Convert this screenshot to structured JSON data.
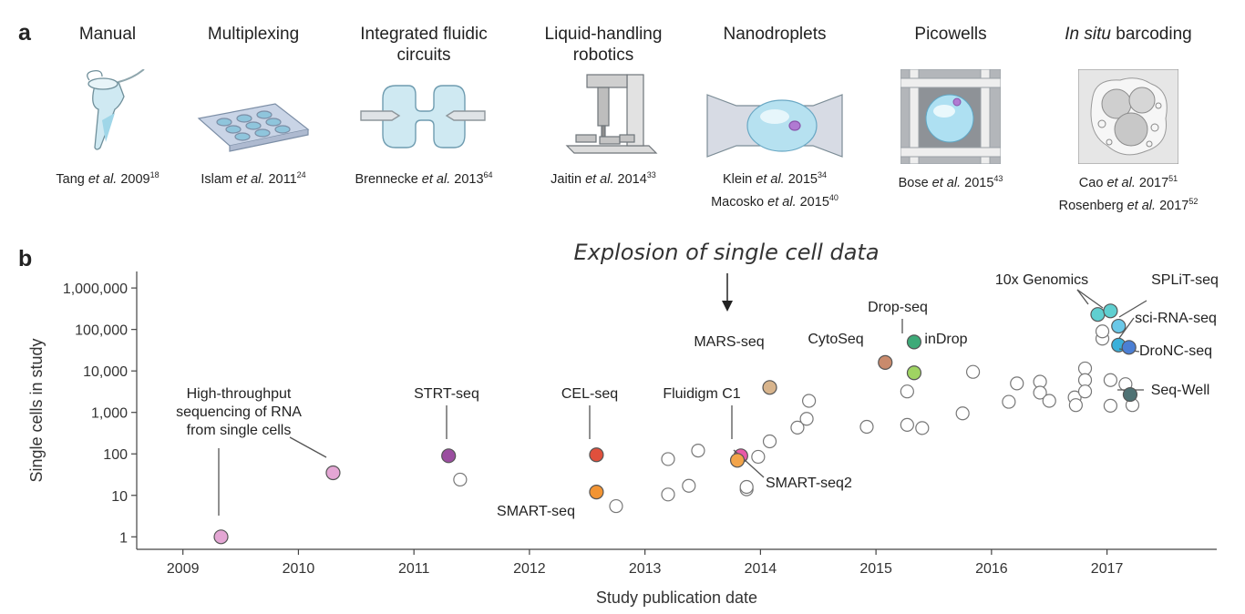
{
  "panel_a": {
    "letter": "a",
    "technologies": [
      {
        "name": "Manual",
        "icon": "microcentrifuge-tube-icon",
        "refs": [
          {
            "pre": "Tang ",
            "etal": "et al.",
            "year": " 2009",
            "sup": "18"
          }
        ]
      },
      {
        "name": "Multiplexing",
        "icon": "multiwell-plate-icon",
        "refs": [
          {
            "pre": "Islam ",
            "etal": "et al.",
            "year": " 2011",
            "sup": "24"
          }
        ]
      },
      {
        "name": "Integrated fluidic circuits",
        "icon": "fluidic-circuit-icon",
        "refs": [
          {
            "pre": "Brennecke ",
            "etal": "et al.",
            "year": " 2013",
            "sup": "64"
          }
        ]
      },
      {
        "name": "Liquid-handling robotics",
        "icon": "liquid-handling-robot-icon",
        "refs": [
          {
            "pre": "Jaitin ",
            "etal": "et al.",
            "year": " 2014",
            "sup": "33"
          }
        ]
      },
      {
        "name": "Nanodroplets",
        "icon": "nanodroplet-channel-icon",
        "refs": [
          {
            "pre": "Klein ",
            "etal": "et al.",
            "year": " 2015",
            "sup": "34"
          },
          {
            "pre": "Macosko ",
            "etal": "et al.",
            "year": " 2015",
            "sup": "40"
          }
        ]
      },
      {
        "name": "Picowells",
        "icon": "picowell-grid-icon",
        "refs": [
          {
            "pre": "Bose ",
            "etal": "et al.",
            "year": " 2015",
            "sup": "43"
          }
        ]
      },
      {
        "name_italic": "In situ",
        "name": " barcoding",
        "icon": "in-situ-barcoding-cell-icon",
        "refs": [
          {
            "pre": "Cao ",
            "etal": "et al.",
            "year": " 2017",
            "sup": "51"
          },
          {
            "pre": "Rosenberg ",
            "etal": "et al.",
            "year": " 2017",
            "sup": "52"
          }
        ]
      }
    ]
  },
  "chart_data": {
    "type": "scatter",
    "panel_letter": "b",
    "annotation": "Explosion of single cell data",
    "xlabel": "Study publication date",
    "ylabel": "Single cells in study",
    "xlim": [
      2008.6,
      2017.95
    ],
    "ylim": [
      0.5,
      2500000
    ],
    "yscale": "log",
    "xticks": [
      2009,
      2010,
      2011,
      2012,
      2013,
      2014,
      2015,
      2016,
      2017
    ],
    "xtick_labels": [
      "2009",
      "2010",
      "2011",
      "2012",
      "2013",
      "2014",
      "2015",
      "2016",
      "2017"
    ],
    "yticks": [
      1,
      10,
      100,
      1000,
      10000,
      100000,
      1000000
    ],
    "ytick_labels": [
      "1",
      "10",
      "100",
      "1,000",
      "10,000",
      "100,000",
      "1,000,000"
    ],
    "labeled_points": [
      {
        "name": "High-throughput sequencing of RNA from single cells",
        "label_lines": [
          "High-throughput",
          "sequencing of RNA",
          "from single cells"
        ],
        "x": 2009.33,
        "y": 1,
        "color": "#e4a6d4"
      },
      {
        "name": "High-throughput sequencing of RNA from single cells (2010)",
        "label_lines": [],
        "x": 2010.3,
        "y": 35,
        "color": "#e4a6d4"
      },
      {
        "name": "STRT-seq",
        "label_lines": [
          "STRT-seq"
        ],
        "x": 2011.3,
        "y": 90,
        "color": "#9b4ea0"
      },
      {
        "name": "CEL-seq",
        "label_lines": [
          "CEL-seq"
        ],
        "x": 2012.58,
        "y": 95,
        "color": "#e0503c"
      },
      {
        "name": "SMART-seq",
        "label_lines": [
          "SMART-seq"
        ],
        "x": 2012.58,
        "y": 12,
        "color": "#f29433"
      },
      {
        "name": "Fluidigm C1",
        "label_lines": [
          "Fluidigm C1"
        ],
        "x": 2013.83,
        "y": 90,
        "color": "#e85aa8"
      },
      {
        "name": "SMART-seq2",
        "label_lines": [
          "SMART-seq2"
        ],
        "x": 2013.8,
        "y": 70,
        "color": "#f2a44a"
      },
      {
        "name": "MARS-seq",
        "label_lines": [
          "MARS-seq"
        ],
        "x": 2014.08,
        "y": 4000,
        "color": "#d8b48c"
      },
      {
        "name": "CytoSeq",
        "label_lines": [
          "CytoSeq"
        ],
        "x": 2015.08,
        "y": 16000,
        "color": "#c98a6c"
      },
      {
        "name": "Drop-seq",
        "label_lines": [
          "Drop-seq"
        ],
        "x": 2015.33,
        "y": 50000,
        "color": "#3daa78"
      },
      {
        "name": "inDrop",
        "label_lines": [
          "inDrop"
        ],
        "x": 2015.33,
        "y": 9000,
        "color": "#9fd462"
      },
      {
        "name": "10x Genomics",
        "label_lines": [
          "10x Genomics"
        ],
        "x": 2016.92,
        "y": 230000,
        "color": "#5fcfd0"
      },
      {
        "name": "10x Genomics (2)",
        "label_lines": [],
        "x": 2017.03,
        "y": 280000,
        "color": "#5fcfd0"
      },
      {
        "name": "SPLiT-seq",
        "label_lines": [
          "SPLiT-seq"
        ],
        "x": 2017.1,
        "y": 120000,
        "color": "#6ac8e8"
      },
      {
        "name": "sci-RNA-seq",
        "label_lines": [
          "sci-RNA-seq"
        ],
        "x": 2017.1,
        "y": 42000,
        "color": "#3ab0da"
      },
      {
        "name": "DroNC-seq",
        "label_lines": [
          "DroNC-seq"
        ],
        "x": 2017.19,
        "y": 37000,
        "color": "#4b7fd4"
      },
      {
        "name": "Seq-Well",
        "label_lines": [
          "Seq-Well"
        ],
        "x": 2017.2,
        "y": 2700,
        "color": "#4f7274"
      }
    ],
    "unlabeled_points": [
      [
        2011.4,
        24
      ],
      [
        2012.75,
        5.5
      ],
      [
        2013.2,
        75
      ],
      [
        2013.2,
        10.5
      ],
      [
        2013.38,
        17
      ],
      [
        2013.46,
        120
      ],
      [
        2013.88,
        14
      ],
      [
        2013.88,
        16
      ],
      [
        2013.98,
        85
      ],
      [
        2014.08,
        200
      ],
      [
        2014.32,
        430
      ],
      [
        2014.4,
        700
      ],
      [
        2014.42,
        1900
      ],
      [
        2014.92,
        450
      ],
      [
        2015.27,
        3200
      ],
      [
        2015.27,
        500
      ],
      [
        2015.4,
        420
      ],
      [
        2015.75,
        950
      ],
      [
        2015.84,
        9500
      ],
      [
        2016.15,
        1800
      ],
      [
        2016.22,
        5000
      ],
      [
        2016.42,
        5500
      ],
      [
        2016.42,
        3000
      ],
      [
        2016.5,
        1900
      ],
      [
        2016.72,
        2300
      ],
      [
        2016.73,
        1500
      ],
      [
        2016.81,
        11500
      ],
      [
        2016.81,
        6000
      ],
      [
        2016.81,
        3200
      ],
      [
        2016.96,
        60000
      ],
      [
        2016.96,
        90000
      ],
      [
        2017.03,
        6000
      ],
      [
        2017.03,
        1450
      ],
      [
        2017.16,
        4800
      ],
      [
        2017.22,
        1500
      ]
    ]
  }
}
